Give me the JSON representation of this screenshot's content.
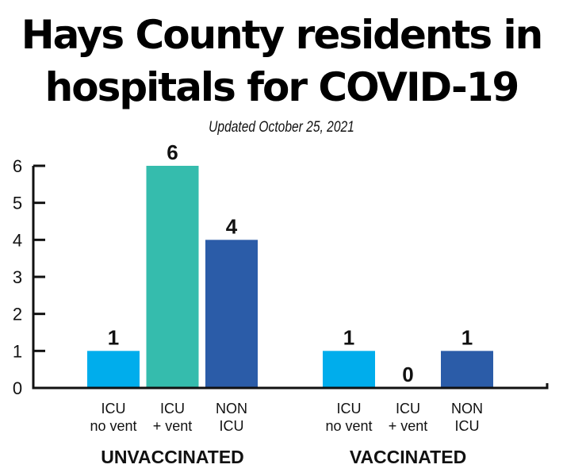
{
  "title_line1": "Hays County residents in",
  "title_line2": "hospitals for COVID-19",
  "subtitle": "Updated October 25, 2021",
  "chart_data": {
    "type": "bar",
    "title": "Hays County residents in hospitals for COVID-19",
    "subtitle": "Updated October 25, 2021",
    "ylim": [
      0,
      6
    ],
    "yticks": [
      "0",
      "1",
      "2",
      "3",
      "4",
      "5",
      "6"
    ],
    "grid": false,
    "groups": [
      {
        "name": "UNVACCINATED",
        "bars": [
          {
            "label_line1": "ICU",
            "label_line2": "no vent",
            "value": 1,
            "value_label": "1",
            "color": "#00adec"
          },
          {
            "label_line1": "ICU",
            "label_line2": "+ vent",
            "value": 6,
            "value_label": "6",
            "color": "#35bcad"
          },
          {
            "label_line1": "NON",
            "label_line2": "ICU",
            "value": 4,
            "value_label": "4",
            "color": "#2b5ca8"
          }
        ]
      },
      {
        "name": "VACCINATED",
        "bars": [
          {
            "label_line1": "ICU",
            "label_line2": "no vent",
            "value": 1,
            "value_label": "1",
            "color": "#00adec"
          },
          {
            "label_line1": "ICU",
            "label_line2": "+ vent",
            "value": 0,
            "value_label": "0",
            "color": "#35bcad"
          },
          {
            "label_line1": "NON",
            "label_line2": "ICU",
            "value": 1,
            "value_label": "1",
            "color": "#2b5ca8"
          }
        ]
      }
    ]
  }
}
